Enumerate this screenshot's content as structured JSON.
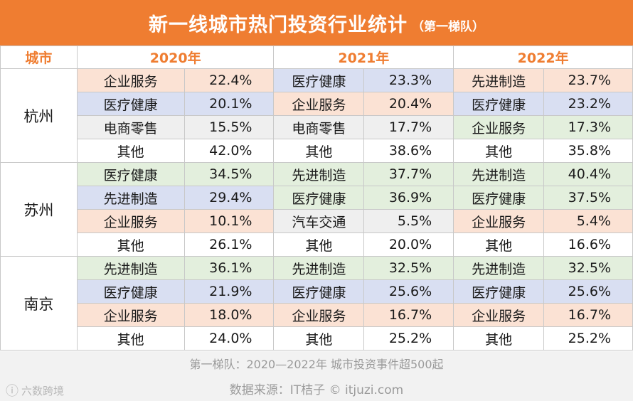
{
  "title": "新一线城市热门投资行业统计",
  "subtitle": "（第一梯队）",
  "header": {
    "city": "城市",
    "years": [
      "2020年",
      "2021年",
      "2022年"
    ]
  },
  "colors": {
    "title_bg": "#ef7d31",
    "先进制造": "#e3efdd",
    "医疗健康": "#d9dff2",
    "企业服务": "#fbe2d4",
    "电商零售": "#efefef",
    "汽车交通": "#efefef",
    "其他": "#ffffff"
  },
  "footer_note": "第一梯队：2020—2022年 城市投资事件超500起",
  "source": "数据来源：IT桔子 © itjuzi.com",
  "watermark": "六数跨境",
  "chart_data": {
    "type": "table",
    "title": "新一线城市热门投资行业统计（第一梯队）",
    "columns": [
      "城市",
      "2020年",
      "2021年",
      "2022年"
    ],
    "cities": [
      {
        "name": "杭州",
        "years": [
          [
            [
              "企业服务",
              "22.4%",
              "企业服务"
            ],
            [
              "医疗健康",
              "20.1%",
              "医疗健康"
            ],
            [
              "电商零售",
              "15.5%",
              "电商零售"
            ],
            [
              "其他",
              "42.0%",
              "其他"
            ]
          ],
          [
            [
              "医疗健康",
              "23.3%",
              "医疗健康"
            ],
            [
              "企业服务",
              "20.4%",
              "企业服务"
            ],
            [
              "电商零售",
              "17.7%",
              "电商零售"
            ],
            [
              "其他",
              "38.6%",
              "其他"
            ]
          ],
          [
            [
              "先进制造",
              "23.7%",
              "企业服务"
            ],
            [
              "医疗健康",
              "23.2%",
              "医疗健康"
            ],
            [
              "企业服务",
              "17.3%",
              "先进制造"
            ],
            [
              "其他",
              "35.8%",
              "其他"
            ]
          ]
        ]
      },
      {
        "name": "苏州",
        "years": [
          [
            [
              "医疗健康",
              "34.5%",
              "先进制造"
            ],
            [
              "先进制造",
              "29.4%",
              "医疗健康"
            ],
            [
              "企业服务",
              "10.1%",
              "企业服务"
            ],
            [
              "其他",
              "26.1%",
              "其他"
            ]
          ],
          [
            [
              "先进制造",
              "37.7%",
              "先进制造"
            ],
            [
              "医疗健康",
              "36.9%",
              "先进制造"
            ],
            [
              "汽车交通",
              "5.5%",
              "汽车交通"
            ],
            [
              "其他",
              "20.0%",
              "其他"
            ]
          ],
          [
            [
              "先进制造",
              "40.4%",
              "先进制造"
            ],
            [
              "医疗健康",
              "37.5%",
              "先进制造"
            ],
            [
              "企业服务",
              "5.4%",
              "企业服务"
            ],
            [
              "其他",
              "16.6%",
              "其他"
            ]
          ]
        ]
      },
      {
        "name": "南京",
        "years": [
          [
            [
              "先进制造",
              "36.1%",
              "先进制造"
            ],
            [
              "医疗健康",
              "21.9%",
              "医疗健康"
            ],
            [
              "企业服务",
              "18.0%",
              "企业服务"
            ],
            [
              "其他",
              "24.0%",
              "其他"
            ]
          ],
          [
            [
              "先进制造",
              "32.5%",
              "先进制造"
            ],
            [
              "医疗健康",
              "25.6%",
              "医疗健康"
            ],
            [
              "企业服务",
              "16.7%",
              "企业服务"
            ],
            [
              "其他",
              "25.2%",
              "其他"
            ]
          ],
          [
            [
              "先进制造",
              "32.5%",
              "先进制造"
            ],
            [
              "医疗健康",
              "25.6%",
              "医疗健康"
            ],
            [
              "企业服务",
              "16.7%",
              "企业服务"
            ],
            [
              "其他",
              "25.2%",
              "其他"
            ]
          ]
        ]
      }
    ]
  }
}
